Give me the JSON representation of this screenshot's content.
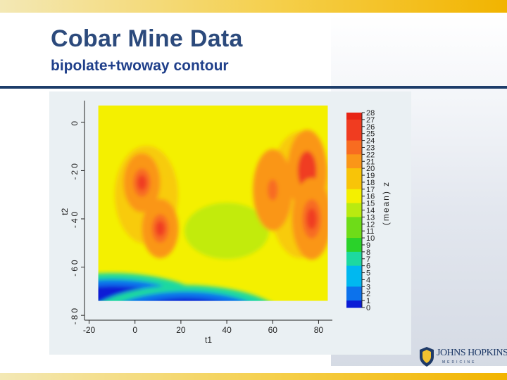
{
  "slide": {
    "title": "Cobar Mine Data",
    "subtitle": "bipolate+twoway contour"
  },
  "logo": {
    "name": "JOHNS HOPKINS",
    "sub": "MEDICINE"
  },
  "chart_data": {
    "type": "heatmap",
    "xlabel": "t1",
    "ylabel": "t2",
    "colorbar_label": "(mean) z",
    "x_ticks": [
      -20,
      0,
      20,
      40,
      60,
      80
    ],
    "y_ticks": [
      0,
      -20,
      -40,
      -60,
      -80
    ],
    "xlim": [
      -22,
      86
    ],
    "ylim": [
      -82,
      9
    ],
    "colorbar_ticks": [
      0,
      1,
      2,
      3,
      4,
      5,
      6,
      7,
      8,
      9,
      10,
      11,
      12,
      13,
      14,
      15,
      16,
      17,
      18,
      19,
      20,
      21,
      22,
      23,
      24,
      25,
      26,
      27,
      28
    ],
    "zlim": [
      0,
      28
    ],
    "colorscale": [
      "#0a1cd6",
      "#0c72ec",
      "#00b8f0",
      "#1dd9a0",
      "#2ad22a",
      "#6edc18",
      "#b9ea10",
      "#f4f000",
      "#f8c408",
      "#fa9618",
      "#f86c20",
      "#f03c20",
      "#e82414"
    ],
    "data_region": {
      "x": [
        -16,
        84
      ],
      "y": [
        -74,
        7
      ]
    },
    "features": [
      {
        "kind": "peak",
        "x": 3,
        "y": -25,
        "z": 25
      },
      {
        "kind": "peak",
        "x": 11,
        "y": -44,
        "z": 25
      },
      {
        "kind": "peak",
        "x": 75,
        "y": -20,
        "z": 26
      },
      {
        "kind": "peak",
        "x": 77,
        "y": -40,
        "z": 25
      },
      {
        "kind": "peak",
        "x": 60,
        "y": -28,
        "z": 23
      },
      {
        "kind": "low",
        "x": -10,
        "y": -80,
        "z": 0
      },
      {
        "kind": "low",
        "x": 22,
        "y": -85,
        "z": 0
      }
    ]
  }
}
